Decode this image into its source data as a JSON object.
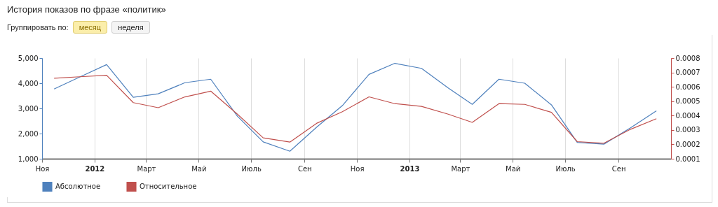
{
  "chart_data": {
    "type": "line",
    "title": "История показов по фразе «политик»",
    "annotations": [
      "Группировать по:",
      "месяц",
      "неделя"
    ],
    "x": [
      "2011-11-15",
      "2011-12-15",
      "2012-01-15",
      "2012-02-15",
      "2012-03-15",
      "2012-04-15",
      "2012-05-15",
      "2012-06-15",
      "2012-07-15",
      "2012-08-15",
      "2012-09-15",
      "2012-10-15",
      "2012-11-15",
      "2012-12-15",
      "2013-01-15",
      "2013-02-15",
      "2013-03-15",
      "2013-04-15",
      "2013-05-15",
      "2013-06-15",
      "2013-07-15",
      "2013-08-15",
      "2013-09-15",
      "2013-10-15"
    ],
    "series": [
      {
        "name": "Абсолютное",
        "color": "#4f81bd",
        "values": [
          3770,
          4250,
          4740,
          3440,
          3580,
          4020,
          4160,
          2690,
          1670,
          1300,
          2250,
          3110,
          4350,
          4790,
          4590,
          3810,
          3160,
          4160,
          4000,
          3140,
          1650,
          1580,
          2230,
          2900
        ]
      },
      {
        "name": "Относительное",
        "color": "#c0504d",
        "axis": "y2",
        "values": [
          0.00066,
          0.00067,
          0.00068,
          0.00049,
          0.000455,
          0.00053,
          0.00057,
          0.00041,
          0.000245,
          0.000216,
          0.000346,
          0.000427,
          0.00053,
          0.000483,
          0.000464,
          0.00041,
          0.000353,
          0.000483,
          0.000478,
          0.000423,
          0.000219,
          0.000208,
          0.000305,
          0.000378
        ]
      }
    ],
    "xlim": [
      "2011-11-01",
      "2013-11-01"
    ],
    "xticks": [
      {
        "value": "2011-11-01",
        "label": "Ноя"
      },
      {
        "value": "2012-01-01",
        "label": "2012"
      },
      {
        "value": "2012-03-01",
        "label": "Март"
      },
      {
        "value": "2012-05-01",
        "label": "Май"
      },
      {
        "value": "2012-07-01",
        "label": "Июль"
      },
      {
        "value": "2012-09-01",
        "label": "Сен"
      },
      {
        "value": "2012-11-01",
        "label": "Ноя"
      },
      {
        "value": "2013-01-01",
        "label": "2013"
      },
      {
        "value": "2013-03-01",
        "label": "Март"
      },
      {
        "value": "2013-05-01",
        "label": "Май"
      },
      {
        "value": "2013-07-01",
        "label": "Июль"
      },
      {
        "value": "2013-09-01",
        "label": "Сен"
      }
    ],
    "ylim": [
      1000,
      5000
    ],
    "yticks": [
      {
        "value": 1000,
        "label": "1,000"
      },
      {
        "value": 2000,
        "label": "2,000"
      },
      {
        "value": 3000,
        "label": "3,000"
      },
      {
        "value": 4000,
        "label": "4,000"
      },
      {
        "value": 5000,
        "label": "5,000"
      }
    ],
    "y2lim": [
      0.0001,
      0.0008
    ],
    "y2ticks": [
      {
        "value": 0.0001,
        "label": "0.0001"
      },
      {
        "value": 0.0002,
        "label": "0.0002"
      },
      {
        "value": 0.0003,
        "label": "0.0003"
      },
      {
        "value": 0.0004,
        "label": "0.0004"
      },
      {
        "value": 0.0005,
        "label": "0.0005"
      },
      {
        "value": 0.0006,
        "label": "0.0006"
      },
      {
        "value": 0.0007,
        "label": "0.0007"
      },
      {
        "value": 0.0008,
        "label": "0.0008"
      }
    ],
    "grid": "x",
    "legend": "bottom left",
    "marker": "none",
    "line_style": "solid"
  }
}
